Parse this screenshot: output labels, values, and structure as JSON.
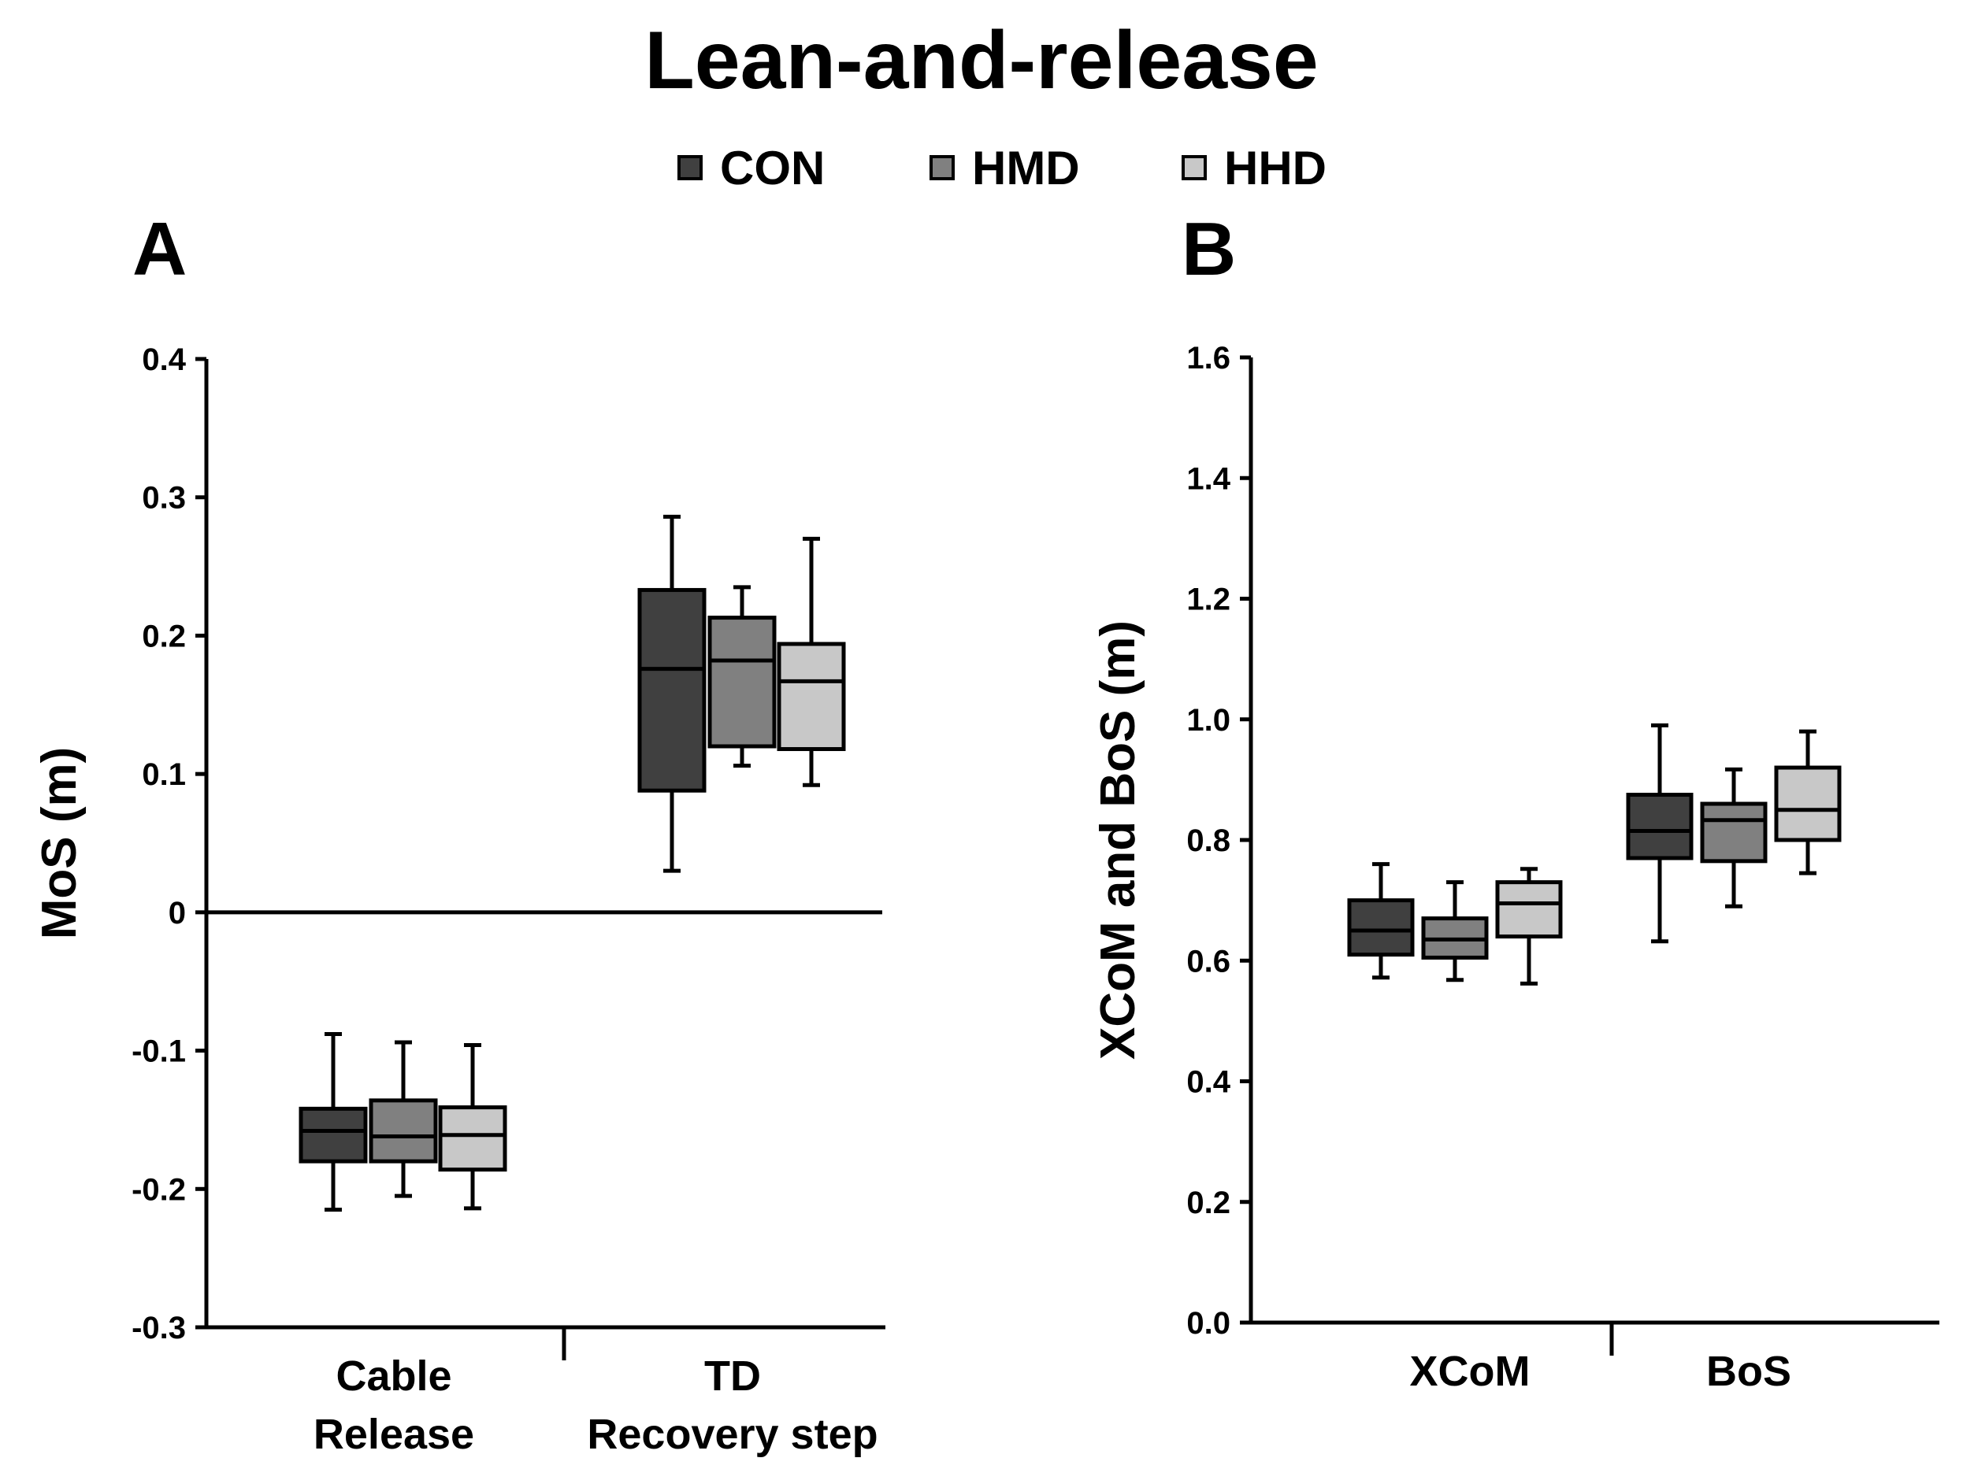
{
  "title": "Lean-and-release",
  "legend": [
    {
      "label": "CON",
      "color": "#404040"
    },
    {
      "label": "HMD",
      "color": "#808080"
    },
    {
      "label": "HHD",
      "color": "#c8c8c8"
    }
  ],
  "panels": {
    "A": "A",
    "B": "B"
  },
  "chart_data": [
    {
      "type": "box",
      "panel": "A",
      "ylabel": "MoS (m)",
      "xlabel": "",
      "ylim": [
        -0.3,
        0.4
      ],
      "yticks": [
        0.4,
        0.3,
        0.2,
        0.1,
        0,
        -0.1,
        -0.2,
        -0.3
      ],
      "ytick_labels": [
        "0.4",
        "0.3",
        "0.2",
        "0.1",
        "0",
        "-0.1",
        "-0.2",
        "-0.3"
      ],
      "zero_line": true,
      "categories": [
        {
          "lines": [
            "Cable",
            "Release"
          ]
        },
        {
          "lines": [
            "TD",
            "Recovery step"
          ]
        }
      ],
      "series": [
        {
          "name": "CON",
          "boxes": [
            {
              "min": -0.215,
              "q1": -0.18,
              "median": -0.158,
              "q3": -0.142,
              "max": -0.088
            },
            {
              "min": 0.03,
              "q1": 0.088,
              "median": 0.176,
              "q3": 0.233,
              "max": 0.286
            }
          ]
        },
        {
          "name": "HMD",
          "boxes": [
            {
              "min": -0.205,
              "q1": -0.18,
              "median": -0.162,
              "q3": -0.136,
              "max": -0.094
            },
            {
              "min": 0.106,
              "q1": 0.12,
              "median": 0.182,
              "q3": 0.213,
              "max": 0.235
            }
          ]
        },
        {
          "name": "HHD",
          "boxes": [
            {
              "min": -0.214,
              "q1": -0.186,
              "median": -0.161,
              "q3": -0.141,
              "max": -0.096
            },
            {
              "min": 0.092,
              "q1": 0.118,
              "median": 0.167,
              "q3": 0.194,
              "max": 0.27
            }
          ]
        }
      ]
    },
    {
      "type": "box",
      "panel": "B",
      "ylabel": "XCoM and BoS (m)",
      "xlabel": "",
      "ylim": [
        0.0,
        1.6
      ],
      "yticks": [
        1.6,
        1.4,
        1.2,
        1.0,
        0.8,
        0.6,
        0.4,
        0.2,
        0.0
      ],
      "ytick_labels": [
        "1.6",
        "1.4",
        "1.2",
        "1.0",
        "0.8",
        "0.6",
        "0.4",
        "0.2",
        "0.0"
      ],
      "zero_line": false,
      "categories": [
        {
          "lines": [
            "XCoM"
          ]
        },
        {
          "lines": [
            "BoS"
          ]
        }
      ],
      "series": [
        {
          "name": "CON",
          "boxes": [
            {
              "min": 0.572,
              "q1": 0.61,
              "median": 0.65,
              "q3": 0.7,
              "max": 0.76
            },
            {
              "min": 0.632,
              "q1": 0.77,
              "median": 0.815,
              "q3": 0.875,
              "max": 0.99
            }
          ]
        },
        {
          "name": "HMD",
          "boxes": [
            {
              "min": 0.568,
              "q1": 0.605,
              "median": 0.635,
              "q3": 0.67,
              "max": 0.73
            },
            {
              "min": 0.69,
              "q1": 0.765,
              "median": 0.833,
              "q3": 0.86,
              "max": 0.917
            }
          ]
        },
        {
          "name": "HHD",
          "boxes": [
            {
              "min": 0.562,
              "q1": 0.64,
              "median": 0.695,
              "q3": 0.73,
              "max": 0.752
            },
            {
              "min": 0.745,
              "q1": 0.8,
              "median": 0.85,
              "q3": 0.92,
              "max": 0.98
            }
          ]
        }
      ]
    }
  ]
}
